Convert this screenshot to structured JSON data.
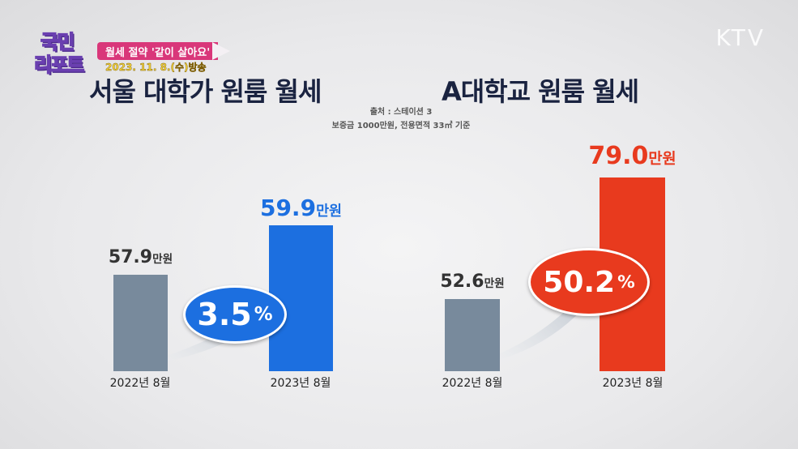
{
  "header": {
    "logo_text": "국민 리포트",
    "subtitle": "월세 절약 '같이 살아요'",
    "date": "2023. 11. 8.(수)방송",
    "channel": "KTV"
  },
  "source": {
    "line1": "출처 : 스테이션 3",
    "line2": "보증금 1000만원, 전용면적 33㎡ 기준"
  },
  "colors": {
    "gray_bar": "#788a9c",
    "blue": "#1c6fe0",
    "red": "#e83a1e"
  },
  "chart_data": [
    {
      "type": "bar",
      "title": "서울 대학가 원룸 월세",
      "categories": [
        "2022년 8월",
        "2023년 8월"
      ],
      "values": [
        57.9,
        59.9
      ],
      "value_labels": [
        "57.9",
        "59.9"
      ],
      "unit": "만원",
      "ylim": [
        54,
        62.2
      ],
      "change_label": "3.5",
      "change_unit": "%",
      "highlight": "#1c6fe0"
    },
    {
      "type": "bar",
      "title": "A대학교 원룸 월세",
      "categories": [
        "2022년 8월",
        "2023년 8월"
      ],
      "values": [
        52.6,
        79.0
      ],
      "value_labels": [
        "52.6",
        "79.0"
      ],
      "unit": "만원",
      "ylim": [
        37,
        81
      ],
      "change_label": "50.2",
      "change_unit": "%",
      "highlight": "#e83a1e"
    }
  ]
}
